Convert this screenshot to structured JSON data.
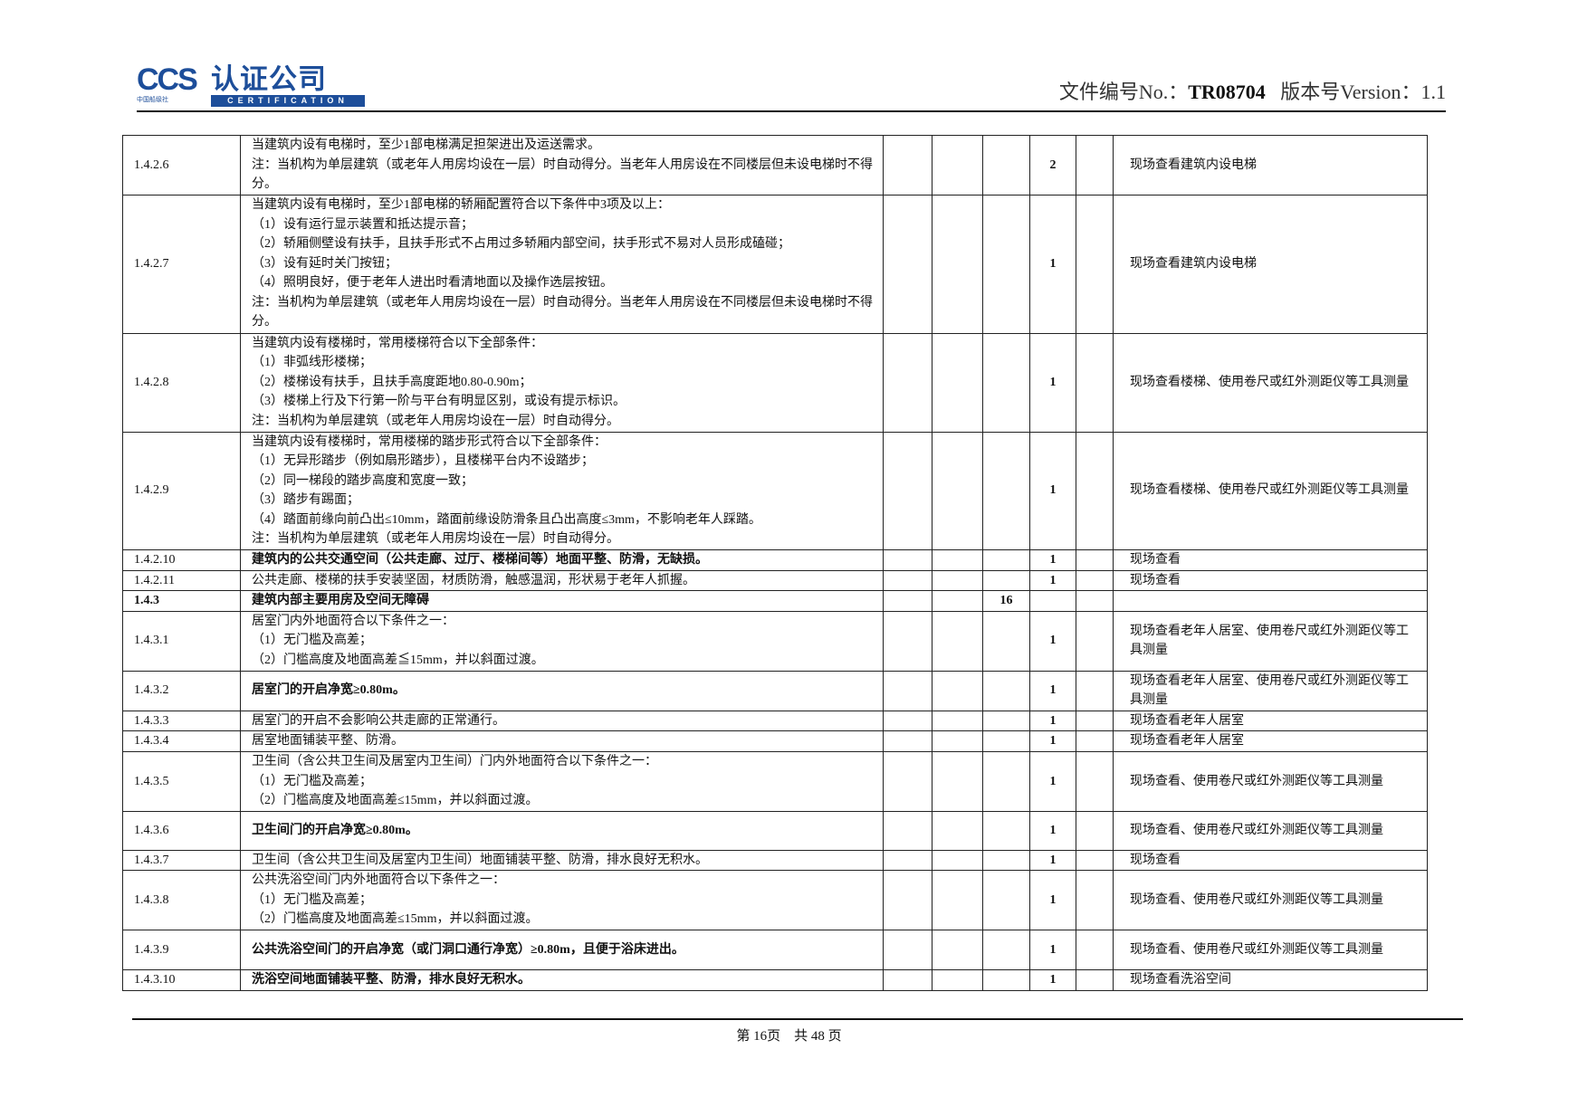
{
  "header": {
    "logo": {
      "mark": "CCS",
      "name_cn": "认证公司",
      "society": "中国船级社",
      "certification": "CERTIFICATION"
    },
    "doc_number_label": "文件编号No.：",
    "doc_number": "TR08704",
    "version_label": "版本号Version：",
    "version": "1.1"
  },
  "rows": [
    {
      "id": "1.4.2.6",
      "lines": [
        "当建筑内设有电梯时，至少1部电梯满足担架进出及运送需求。",
        "注：当机构为单层建筑（或老年人用房均设在一层）时自动得分。当老年人用房设在不同楼层但未设电梯时不得分。"
      ],
      "bold": false,
      "subtotal": "",
      "score": "2",
      "method": "现场查看建筑内设电梯"
    },
    {
      "id": "1.4.2.7",
      "lines": [
        "当建筑内设有电梯时，至少1部电梯的轿厢配置符合以下条件中3项及以上：",
        "（1）设有运行显示装置和抵达提示音；",
        "（2）轿厢侧壁设有扶手，且扶手形式不占用过多轿厢内部空间，扶手形式不易对人员形成磕碰；",
        "（3）设有延时关门按钮；",
        "（4）照明良好，便于老年人进出时看清地面以及操作选层按钮。",
        "注：当机构为单层建筑（或老年人用房均设在一层）时自动得分。当老年人用房设在不同楼层但未设电梯时不得分。"
      ],
      "bold": false,
      "subtotal": "",
      "score": "1",
      "method": "现场查看建筑内设电梯"
    },
    {
      "id": "1.4.2.8",
      "lines": [
        "当建筑内设有楼梯时，常用楼梯符合以下全部条件：",
        "（1）非弧线形楼梯；",
        "（2）楼梯设有扶手，且扶手高度距地0.80-0.90m；",
        "（3）楼梯上行及下行第一阶与平台有明显区别，或设有提示标识。",
        "注：当机构为单层建筑（或老年人用房均设在一层）时自动得分。"
      ],
      "bold": false,
      "subtotal": "",
      "score": "1",
      "method": "现场查看楼梯、使用卷尺或红外测距仪等工具测量"
    },
    {
      "id": "1.4.2.9",
      "lines": [
        "当建筑内设有楼梯时，常用楼梯的踏步形式符合以下全部条件：",
        "（1）无异形踏步（例如扇形踏步），且楼梯平台内不设踏步；",
        "（2）同一梯段的踏步高度和宽度一致；",
        "（3）踏步有踢面；",
        "（4）踏面前缘向前凸出≤10mm，踏面前缘设防滑条且凸出高度≤3mm，不影响老年人踩踏。",
        "注：当机构为单层建筑（或老年人用房均设在一层）时自动得分。"
      ],
      "bold": false,
      "subtotal": "",
      "score": "1",
      "method": "现场查看楼梯、使用卷尺或红外测距仪等工具测量"
    },
    {
      "id": "1.4.2.10",
      "lines": [
        "建筑内的公共交通空间（公共走廊、过厅、楼梯间等）地面平整、防滑，无缺损。"
      ],
      "bold": true,
      "subtotal": "",
      "score": "1",
      "method": "现场查看"
    },
    {
      "id": "1.4.2.11",
      "lines": [
        "公共走廊、楼梯的扶手安装坚固，材质防滑，触感温润，形状易于老年人抓握。"
      ],
      "bold": false,
      "subtotal": "",
      "score": "1",
      "method": "现场查看"
    },
    {
      "id": "1.4.3",
      "lines": [
        "建筑内部主要用房及空间无障碍"
      ],
      "bold": true,
      "section": true,
      "subtotal": "16",
      "score": "",
      "method": ""
    },
    {
      "id": "1.4.3.1",
      "lines": [
        "居室门内外地面符合以下条件之一：",
        "（1）无门槛及高差；",
        "（2）门槛高度及地面高差≦15mm，并以斜面过渡。"
      ],
      "bold": false,
      "subtotal": "",
      "score": "1",
      "method": "现场查看老年人居室、使用卷尺或红外测距仪等工具测量"
    },
    {
      "id": "1.4.3.2",
      "lines": [
        "居室门的开启净宽≥0.80m。"
      ],
      "bold": true,
      "subtotal": "",
      "score": "1",
      "method": "现场查看老年人居室、使用卷尺或红外测距仪等工具测量"
    },
    {
      "id": "1.4.3.3",
      "lines": [
        "居室门的开启不会影响公共走廊的正常通行。"
      ],
      "bold": false,
      "subtotal": "",
      "score": "1",
      "method": "现场查看老年人居室"
    },
    {
      "id": "1.4.3.4",
      "lines": [
        "居室地面铺装平整、防滑。"
      ],
      "bold": false,
      "subtotal": "",
      "score": "1",
      "method": "现场查看老年人居室"
    },
    {
      "id": "1.4.3.5",
      "lines": [
        "卫生间（含公共卫生间及居室内卫生间）门内外地面符合以下条件之一：",
        "（1）无门槛及高差；",
        "（2）门槛高度及地面高差≤15mm，并以斜面过渡。"
      ],
      "bold": false,
      "subtotal": "",
      "score": "1",
      "method": "现场查看、使用卷尺或红外测距仪等工具测量"
    },
    {
      "id": "1.4.3.6",
      "lines": [
        "卫生间门的开启净宽≥0.80m。"
      ],
      "bold": true,
      "subtotal": "",
      "score": "1",
      "method": "现场查看、使用卷尺或红外测距仪等工具测量"
    },
    {
      "id": "1.4.3.7",
      "lines": [
        "卫生间（含公共卫生间及居室内卫生间）地面铺装平整、防滑，排水良好无积水。"
      ],
      "bold": false,
      "subtotal": "",
      "score": "1",
      "method": "现场查看"
    },
    {
      "id": "1.4.3.8",
      "lines": [
        "公共洗浴空间门内外地面符合以下条件之一：",
        "（1）无门槛及高差；",
        "（2）门槛高度及地面高差≤15mm，并以斜面过渡。"
      ],
      "bold": false,
      "subtotal": "",
      "score": "1",
      "method": "现场查看、使用卷尺或红外测距仪等工具测量"
    },
    {
      "id": "1.4.3.9",
      "lines": [
        "公共洗浴空间门的开启净宽（或门洞口通行净宽）≥0.80m，且便于浴床进出。"
      ],
      "bold": true,
      "subtotal": "",
      "score": "1",
      "method": "现场查看、使用卷尺或红外测距仪等工具测量"
    },
    {
      "id": "1.4.3.10",
      "lines": [
        "洗浴空间地面铺装平整、防滑，排水良好无积水。"
      ],
      "bold": true,
      "subtotal": "",
      "score": "1",
      "method": "现场查看洗浴空间"
    }
  ],
  "footer": {
    "page_text": "第 16页    共 48 页"
  }
}
